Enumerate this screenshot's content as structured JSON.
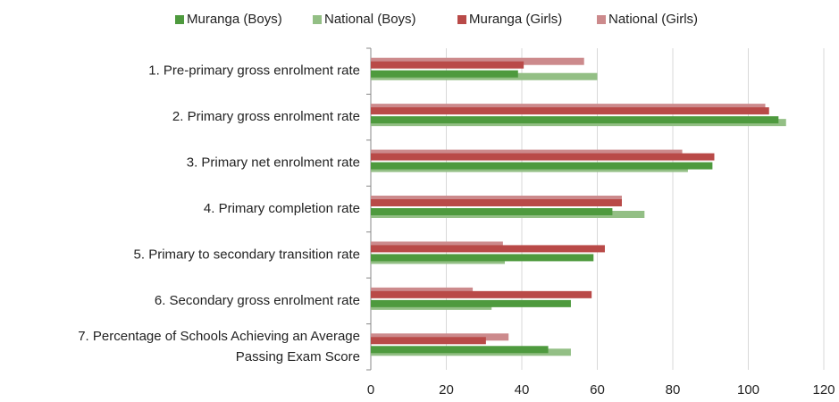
{
  "chart_data": {
    "type": "bar",
    "orientation": "horizontal",
    "categories": [
      "1. Pre-primary gross enrolment rate",
      "2. Primary gross enrolment rate",
      "3. Primary net enrolment rate",
      "4. Primary completion rate",
      "5. Primary to secondary transition rate",
      "6. Secondary gross enrolment rate",
      "7. Percentage of Schools Achieving an Average\nPassing Exam Score"
    ],
    "series": [
      {
        "name": "Muranga (Boys)",
        "color": "#4e9a3e",
        "values": [
          39,
          108,
          90.5,
          64,
          59,
          53,
          47
        ]
      },
      {
        "name": "National (Boys)",
        "color": "#93bf85",
        "values": [
          60,
          110,
          84,
          72.5,
          35.5,
          32,
          53
        ]
      },
      {
        "name": "Muranga (Girls)",
        "color": "#b94a48",
        "values": [
          40.5,
          105.5,
          91,
          66.5,
          62,
          58.5,
          30.5
        ]
      },
      {
        "name": "National (Girls)",
        "color": "#cc8a8c",
        "values": [
          56.5,
          104.5,
          82.5,
          66.5,
          35,
          27,
          36.5
        ]
      }
    ],
    "xlim": [
      0,
      120
    ],
    "xticks": [
      0,
      20,
      40,
      60,
      80,
      100,
      120
    ],
    "grid": true,
    "legend": "top"
  }
}
